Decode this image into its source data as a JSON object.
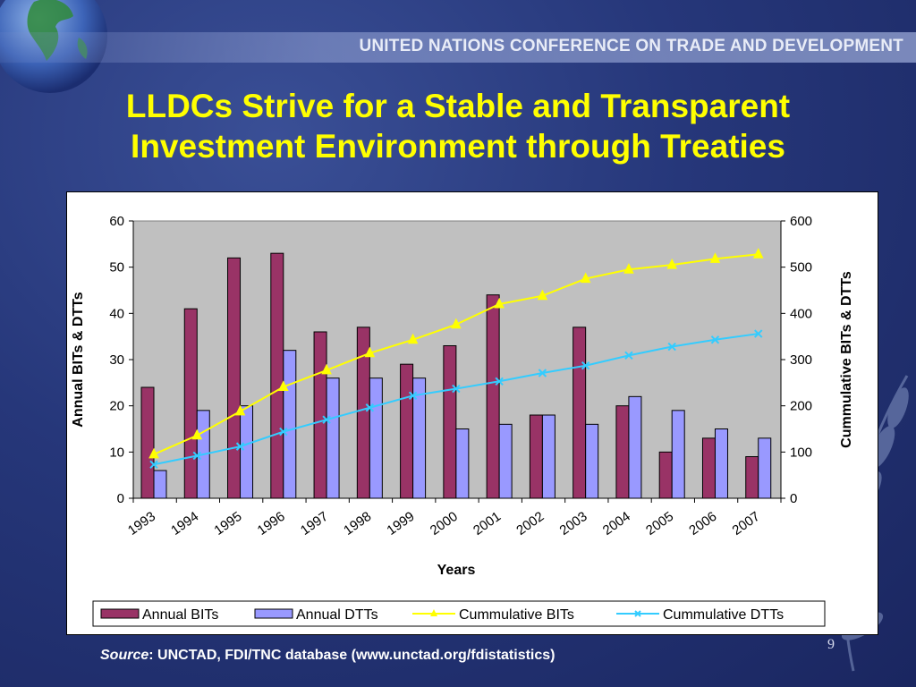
{
  "header": {
    "org_title": "UNITED NATIONS CONFERENCE ON TRADE AND DEVELOPMENT"
  },
  "slide": {
    "title_line1": "LLDCs Strive for a Stable and Transparent",
    "title_line2": "Investment Environment through Treaties",
    "page_number": "9",
    "source_label": "Source",
    "source_text": ": UNCTAD, FDI/TNC database (www.unctad.org/fdistatistics)"
  },
  "colors": {
    "annual_bits": "#993366",
    "annual_dtts": "#9999ff",
    "cumulative_bits": "#ffff00",
    "cumulative_dtts": "#33ccff",
    "plot_bg": "#c0c0c0",
    "title": "#ffff00"
  },
  "chart_data": {
    "type": "bar",
    "categories": [
      "1993",
      "1994",
      "1995",
      "1996",
      "1997",
      "1998",
      "1999",
      "2000",
      "2001",
      "2002",
      "2003",
      "2004",
      "2005",
      "2006",
      "2007"
    ],
    "xlabel": "Years",
    "ylabel": "Annual BITs & DTTs",
    "y2label": "Cummulative BITs & DTTs",
    "ylim": [
      0,
      60
    ],
    "y2lim": [
      0,
      600
    ],
    "yticks": [
      0,
      10,
      20,
      30,
      40,
      50,
      60
    ],
    "y2ticks": [
      0,
      100,
      200,
      300,
      400,
      500,
      600
    ],
    "grid": false,
    "legend_position": "bottom",
    "series": [
      {
        "name": "Annual BITs",
        "kind": "bar",
        "axis": "left",
        "values": [
          24,
          41,
          52,
          53,
          36,
          37,
          29,
          33,
          44,
          18,
          37,
          20,
          10,
          13,
          9
        ]
      },
      {
        "name": "Annual DTTs",
        "kind": "bar",
        "axis": "left",
        "values": [
          6,
          19,
          20,
          32,
          26,
          26,
          26,
          15,
          16,
          18,
          16,
          22,
          19,
          15,
          13
        ]
      },
      {
        "name": "Cummulative BITs",
        "kind": "line",
        "axis": "right",
        "marker": "triangle",
        "values": [
          95,
          136,
          188,
          241,
          277,
          314,
          343,
          376,
          420,
          438,
          475,
          495,
          505,
          518,
          528
        ]
      },
      {
        "name": "Cummulative DTTs",
        "kind": "line",
        "axis": "right",
        "marker": "x",
        "values": [
          73,
          92,
          112,
          144,
          170,
          196,
          222,
          237,
          253,
          271,
          287,
          309,
          328,
          343,
          356
        ]
      }
    ]
  }
}
